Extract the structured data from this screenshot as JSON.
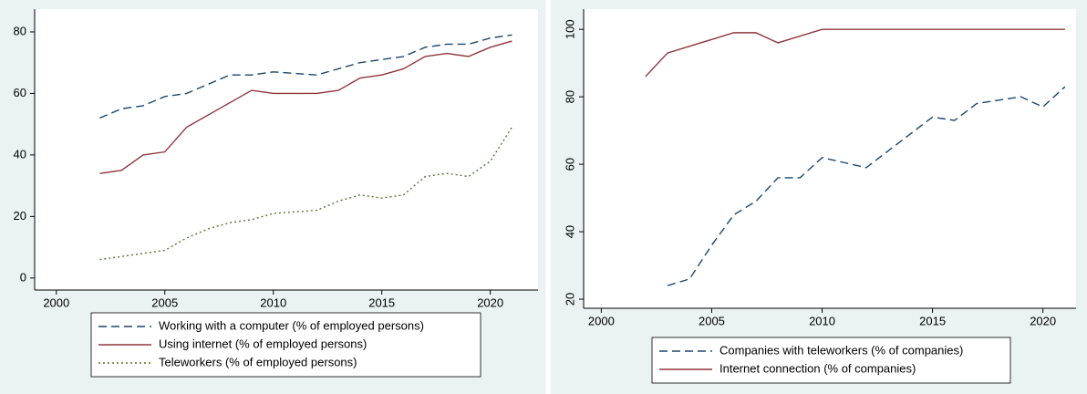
{
  "chart_data": [
    {
      "type": "line",
      "x": [
        2002,
        2003,
        2004,
        2005,
        2006,
        2007,
        2008,
        2009,
        2010,
        2011,
        2012,
        2013,
        2014,
        2015,
        2016,
        2017,
        2018,
        2019,
        2020,
        2021
      ],
      "series": [
        {
          "name": "Working with a computer (% of employed persons)",
          "color": "#1a476f",
          "dash": "long-dash",
          "values": [
            52,
            55,
            56,
            59,
            60,
            63,
            66,
            66,
            67,
            66.5,
            66,
            68,
            70,
            71,
            72,
            75,
            76,
            76,
            78,
            79
          ]
        },
        {
          "name": "Using internet (% of employed persons)",
          "color": "#90353b",
          "dash": "solid",
          "values": [
            34,
            35,
            40,
            41,
            49,
            53,
            57,
            61,
            60,
            60,
            60,
            61,
            65,
            66,
            68,
            72,
            73,
            72,
            75,
            77
          ]
        },
        {
          "name": "Teleworkers (% of employed persons)",
          "color": "#55752f",
          "dash": "dot",
          "values": [
            6,
            7,
            8,
            9,
            13,
            16,
            18,
            19,
            21,
            21.5,
            22,
            25,
            27,
            26,
            27,
            33,
            34,
            33,
            38,
            49
          ]
        }
      ],
      "xlim": [
        1999,
        2022.2
      ],
      "xticks": [
        2000,
        2005,
        2010,
        2015,
        2020
      ],
      "ylim": [
        -3.9,
        87.4
      ],
      "yticks": [
        0,
        20,
        40,
        60,
        80
      ],
      "ytick_rotated": false
    },
    {
      "type": "line",
      "x": [
        2002,
        2003,
        2004,
        2005,
        2006,
        2007,
        2008,
        2009,
        2010,
        2011,
        2012,
        2013,
        2014,
        2015,
        2016,
        2017,
        2018,
        2019,
        2020,
        2021
      ],
      "series": [
        {
          "name": "Companies with teleworkers (% of companies)",
          "color": "#1a476f",
          "dash": "long-dash",
          "values": [
            null,
            24,
            26,
            36,
            45,
            49,
            56,
            56,
            62,
            60.5,
            59,
            64,
            69,
            74,
            73,
            78,
            79,
            80,
            77,
            83
          ]
        },
        {
          "name": "Internet connection (% of companies)",
          "color": "#90353b",
          "dash": "solid",
          "values": [
            86,
            93,
            95,
            97,
            99,
            99,
            96,
            98,
            100,
            100,
            100,
            100,
            100,
            100,
            100,
            100,
            100,
            100,
            100,
            100
          ]
        }
      ],
      "xlim": [
        1999.2,
        2021.5
      ],
      "xticks": [
        2000,
        2005,
        2010,
        2015,
        2020
      ],
      "ylim": [
        17.3,
        106
      ],
      "yticks": [
        20,
        40,
        60,
        80,
        100
      ],
      "ytick_rotated": true
    }
  ]
}
